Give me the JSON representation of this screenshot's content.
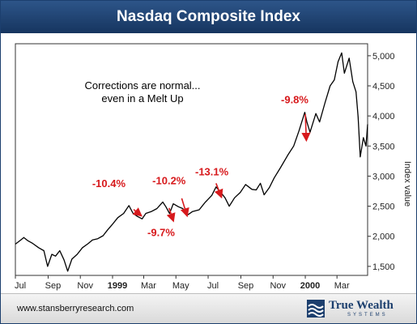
{
  "title": "Nasdaq Composite Index",
  "footer": {
    "url": "www.stansberryresearch.com",
    "logo_name": "True Wealth",
    "logo_sub": "SYSTEMS"
  },
  "colors": {
    "title_bar": "#1c3f6e",
    "line": "#000000",
    "annotation": "#d7191c"
  },
  "chart_data": {
    "type": "line",
    "title": "Nasdaq Composite Index",
    "xlabel": "",
    "ylabel": "Index value",
    "ylim": [
      1350,
      5200
    ],
    "yticks": [
      1500,
      2000,
      2500,
      3000,
      3500,
      4000,
      4500,
      5000
    ],
    "ytick_labels": [
      "1,500",
      "2,000",
      "2,500",
      "3,000",
      "3,500",
      "4,000",
      "4,500",
      "5,000"
    ],
    "y_axis_side": "right",
    "grid": false,
    "xticks": [
      {
        "label": "Jul",
        "date": "1998-07-01",
        "bold": false
      },
      {
        "label": "Sep",
        "date": "1998-09-01",
        "bold": false
      },
      {
        "label": "Nov",
        "date": "1998-11-01",
        "bold": false
      },
      {
        "label": "1999",
        "date": "1999-01-01",
        "bold": true
      },
      {
        "label": "Mar",
        "date": "1999-03-01",
        "bold": false
      },
      {
        "label": "May",
        "date": "1999-05-01",
        "bold": false
      },
      {
        "label": "Jul",
        "date": "1999-07-01",
        "bold": false
      },
      {
        "label": "Sep",
        "date": "1999-09-01",
        "bold": false
      },
      {
        "label": "Nov",
        "date": "1999-11-01",
        "bold": false
      },
      {
        "label": "2000",
        "date": "2000-01-01",
        "bold": true
      },
      {
        "label": "Mar",
        "date": "2000-03-01",
        "bold": false
      }
    ],
    "xlim": [
      "1998-07-01",
      "2000-04-28"
    ],
    "series": [
      {
        "points": [
          [
            "1998-07-01",
            1870
          ],
          [
            "1998-07-10",
            1930
          ],
          [
            "1998-07-17",
            1980
          ],
          [
            "1998-07-24",
            1930
          ],
          [
            "1998-08-03",
            1880
          ],
          [
            "1998-08-14",
            1810
          ],
          [
            "1998-08-24",
            1760
          ],
          [
            "1998-08-31",
            1500
          ],
          [
            "1998-09-08",
            1700
          ],
          [
            "1998-09-15",
            1670
          ],
          [
            "1998-09-23",
            1760
          ],
          [
            "1998-10-01",
            1610
          ],
          [
            "1998-10-08",
            1420
          ],
          [
            "1998-10-16",
            1620
          ],
          [
            "1998-10-26",
            1700
          ],
          [
            "1998-11-05",
            1810
          ],
          [
            "1998-11-16",
            1880
          ],
          [
            "1998-11-24",
            1940
          ],
          [
            "1998-12-04",
            1960
          ],
          [
            "1998-12-14",
            2010
          ],
          [
            "1998-12-22",
            2100
          ],
          [
            "1998-12-31",
            2190
          ],
          [
            "1999-01-11",
            2310
          ],
          [
            "1999-01-22",
            2380
          ],
          [
            "1999-02-01",
            2510
          ],
          [
            "1999-02-09",
            2380
          ],
          [
            "1999-02-17",
            2330
          ],
          [
            "1999-02-26",
            2290
          ],
          [
            "1999-03-05",
            2380
          ],
          [
            "1999-03-15",
            2410
          ],
          [
            "1999-03-26",
            2460
          ],
          [
            "1999-04-06",
            2570
          ],
          [
            "1999-04-12",
            2490
          ],
          [
            "1999-04-19",
            2380
          ],
          [
            "1999-04-26",
            2540
          ],
          [
            "1999-05-06",
            2490
          ],
          [
            "1999-05-14",
            2460
          ],
          [
            "1999-05-24",
            2360
          ],
          [
            "1999-06-01",
            2410
          ],
          [
            "1999-06-14",
            2440
          ],
          [
            "1999-06-25",
            2560
          ],
          [
            "1999-07-08",
            2680
          ],
          [
            "1999-07-16",
            2820
          ],
          [
            "1999-07-23",
            2750
          ],
          [
            "1999-08-02",
            2640
          ],
          [
            "1999-08-10",
            2500
          ],
          [
            "1999-08-20",
            2640
          ],
          [
            "1999-08-31",
            2730
          ],
          [
            "1999-09-10",
            2860
          ],
          [
            "1999-09-22",
            2780
          ],
          [
            "1999-09-30",
            2770
          ],
          [
            "1999-10-08",
            2880
          ],
          [
            "1999-10-15",
            2690
          ],
          [
            "1999-10-25",
            2810
          ],
          [
            "1999-11-03",
            2970
          ],
          [
            "1999-11-15",
            3140
          ],
          [
            "1999-11-29",
            3350
          ],
          [
            "1999-12-10",
            3500
          ],
          [
            "1999-12-20",
            3750
          ],
          [
            "1999-12-31",
            4060
          ],
          [
            "2000-01-04",
            3900
          ],
          [
            "2000-01-10",
            3730
          ],
          [
            "2000-01-21",
            4040
          ],
          [
            "2000-01-28",
            3900
          ],
          [
            "2000-02-07",
            4210
          ],
          [
            "2000-02-17",
            4500
          ],
          [
            "2000-02-25",
            4600
          ],
          [
            "2000-03-03",
            4900
          ],
          [
            "2000-03-10",
            5048
          ],
          [
            "2000-03-15",
            4710
          ],
          [
            "2000-03-24",
            4960
          ],
          [
            "2000-03-31",
            4570
          ],
          [
            "2000-04-06",
            4400
          ],
          [
            "2000-04-10",
            3980
          ],
          [
            "2000-04-14",
            3320
          ],
          [
            "2000-04-20",
            3640
          ],
          [
            "2000-04-25",
            3500
          ],
          [
            "2000-04-28",
            3860
          ]
        ]
      }
    ],
    "annotations": [
      {
        "text": "Corrections are normal...",
        "line2": "even in a Melt Up"
      },
      {
        "text": "-10.4%",
        "from": [
          "1999-02-10",
          2445
        ],
        "to": [
          "1999-02-24",
          2345
        ],
        "label_at": [
          "1998-12-25",
          2820
        ]
      },
      {
        "text": "-9.7%",
        "from": [
          "1999-04-18",
          2470
        ],
        "to": [
          "1999-04-26",
          2260
        ],
        "label_at": [
          "1999-04-03",
          2000
        ]
      },
      {
        "text": "-10.2%",
        "from": [
          "1999-05-12",
          2630
        ],
        "to": [
          "1999-05-22",
          2345
        ],
        "label_at": [
          "1999-04-18",
          2865
        ]
      },
      {
        "text": "-13.1%",
        "from": [
          "1999-07-16",
          2880
        ],
        "to": [
          "1999-07-26",
          2655
        ],
        "label_at": [
          "1999-07-08",
          3010
        ]
      },
      {
        "text": "-9.8%",
        "from": [
          "2000-01-01",
          4030
        ],
        "to": [
          "2000-01-03",
          3600
        ],
        "label_at": [
          "1999-12-12",
          4210
        ]
      }
    ]
  }
}
